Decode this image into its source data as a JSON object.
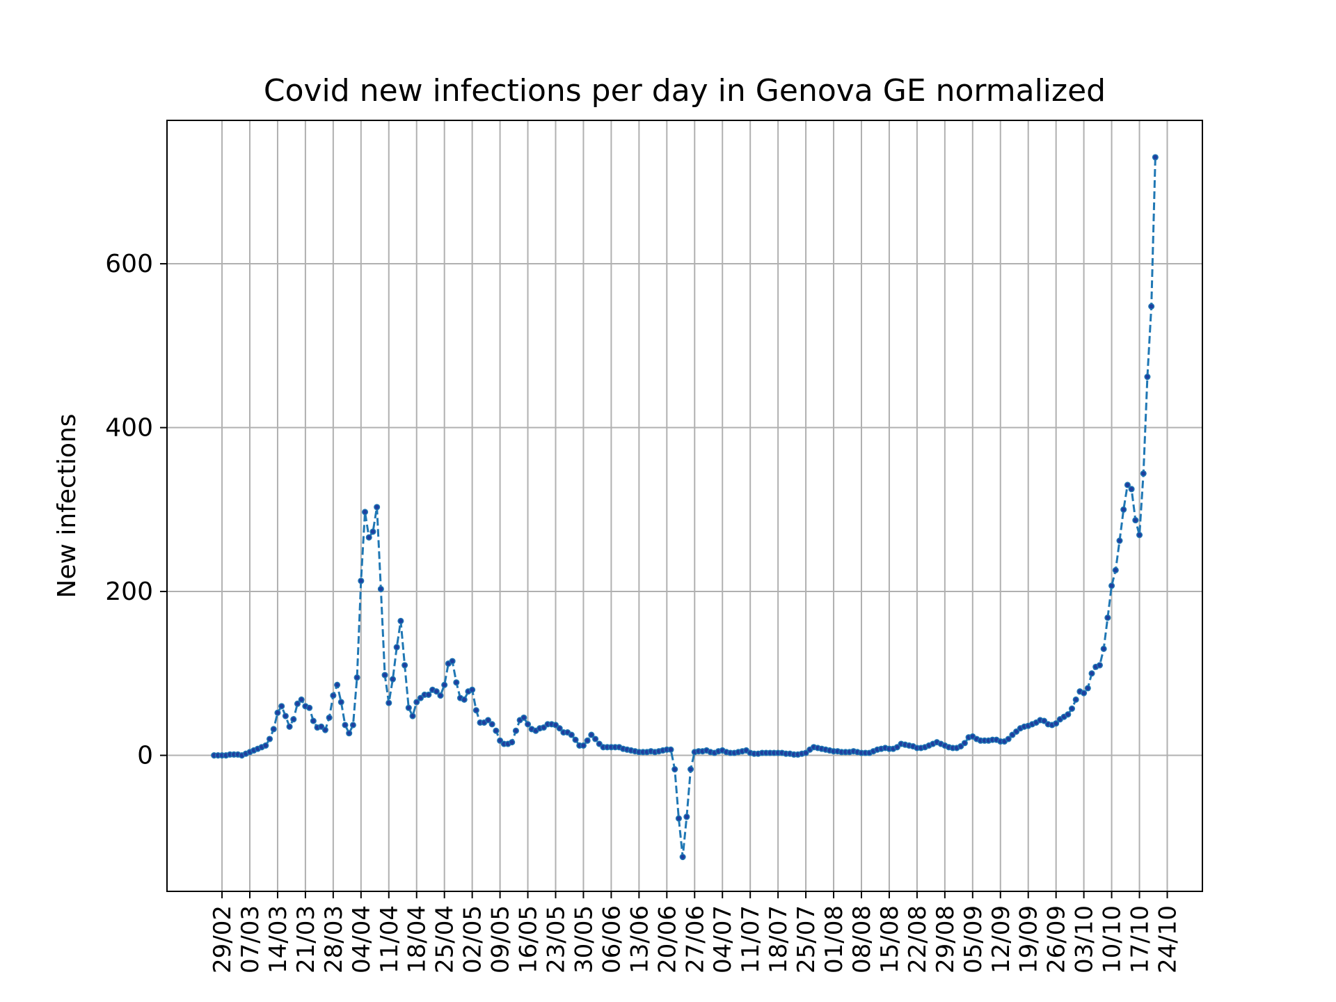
{
  "chart_data": {
    "type": "line",
    "title": "Covid new infections per day in Genova GE normalized",
    "xlabel": "",
    "ylabel": "New infections",
    "ylim": [
      -166,
      775
    ],
    "yticks": [
      0,
      200,
      400,
      600
    ],
    "grid": true,
    "line_color": "#1f77b4",
    "marker_color": "#1f3f9f",
    "line_style": "dashed",
    "x_labels": [
      "29/02",
      "07/03",
      "14/03",
      "21/03",
      "28/03",
      "04/04",
      "11/04",
      "18/04",
      "25/04",
      "02/05",
      "09/05",
      "16/05",
      "23/05",
      "30/05",
      "06/06",
      "13/06",
      "20/06",
      "27/06",
      "04/07",
      "11/07",
      "18/07",
      "25/07",
      "01/08",
      "08/08",
      "15/08",
      "22/08",
      "29/08",
      "05/09",
      "12/09",
      "19/09",
      "26/09",
      "03/10",
      "10/10",
      "17/10",
      "24/10"
    ],
    "x_start_offset": -2,
    "series": [
      {
        "values": [
          0,
          0,
          0,
          0,
          1,
          1,
          1,
          0,
          2,
          4,
          6,
          8,
          10,
          12,
          20,
          32,
          52,
          60,
          48,
          35,
          44,
          63,
          68,
          60,
          58,
          42,
          34,
          35,
          31,
          46,
          73,
          86,
          65,
          37,
          27,
          37,
          95,
          213,
          297,
          266,
          273,
          303,
          203,
          98,
          64,
          93,
          132,
          164,
          110,
          58,
          48,
          65,
          70,
          74,
          74,
          80,
          78,
          73,
          86,
          112,
          115,
          89,
          70,
          68,
          78,
          80,
          55,
          40,
          40,
          43,
          38,
          30,
          18,
          14,
          14,
          16,
          30,
          43,
          46,
          38,
          32,
          30,
          33,
          34,
          38,
          38,
          37,
          33,
          28,
          28,
          25,
          19,
          12,
          12,
          18,
          25,
          20,
          14,
          10,
          10,
          10,
          10,
          10,
          8,
          7,
          6,
          5,
          4,
          4,
          4,
          5,
          4,
          5,
          6,
          7,
          7,
          -17,
          -77,
          -124,
          -75,
          -17,
          4,
          5,
          5,
          6,
          4,
          3,
          5,
          6,
          4,
          3,
          3,
          4,
          5,
          6,
          3,
          2,
          2,
          3,
          3,
          3,
          3,
          3,
          3,
          2,
          2,
          1,
          1,
          2,
          3,
          7,
          10,
          9,
          8,
          7,
          6,
          5,
          5,
          4,
          4,
          4,
          5,
          4,
          3,
          3,
          3,
          5,
          7,
          8,
          9,
          8,
          8,
          10,
          14,
          13,
          12,
          11,
          9,
          9,
          10,
          12,
          14,
          16,
          14,
          12,
          10,
          9,
          9,
          11,
          15,
          22,
          23,
          20,
          18,
          18,
          18,
          19,
          19,
          17,
          17,
          20,
          25,
          29,
          33,
          35,
          36,
          38,
          40,
          43,
          42,
          38,
          37,
          39,
          44,
          47,
          50,
          57,
          68,
          78,
          76,
          82,
          100,
          108,
          110,
          130,
          168,
          207,
          226,
          262,
          300,
          330,
          325,
          287,
          269,
          344,
          462,
          548,
          730
        ]
      }
    ]
  }
}
